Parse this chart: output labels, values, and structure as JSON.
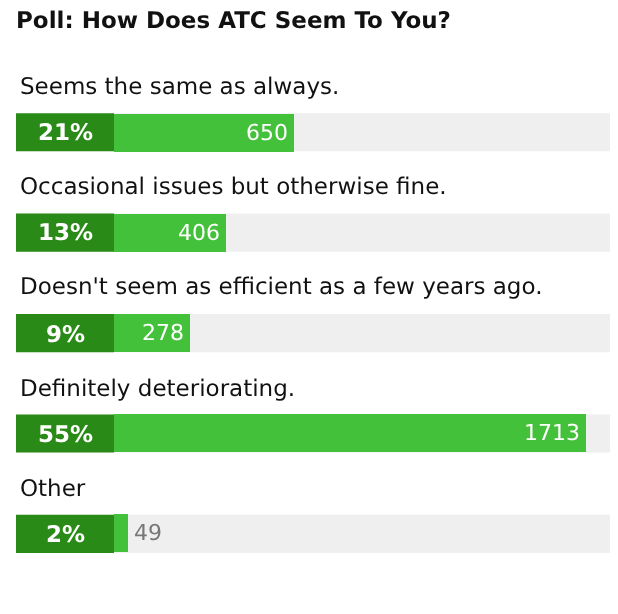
{
  "chart_data": {
    "type": "bar",
    "orientation": "horizontal",
    "title": "Poll: How Does ATC Seem To You?",
    "categories": [
      "Seems the same as always.",
      "Occasional issues but otherwise fine.",
      "Doesn't seem as efficient as a few years ago.",
      "Definitely deteriorating.",
      "Other"
    ],
    "values": [
      650,
      406,
      278,
      1713,
      49
    ],
    "color": "#44c13a",
    "tick_labels": false,
    "data_labels": true,
    "annotations": [
      "21%",
      "13%",
      "9%",
      "55%",
      "2%"
    ]
  }
}
